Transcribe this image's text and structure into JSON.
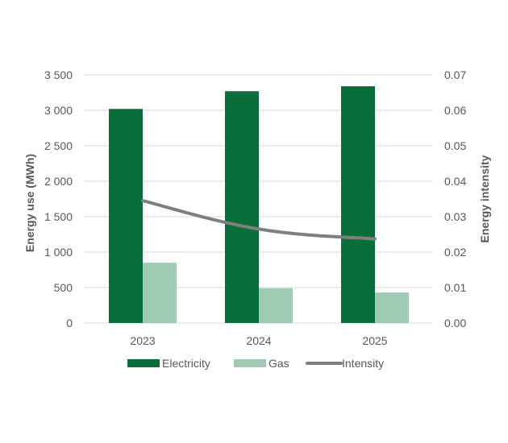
{
  "chart_data": {
    "type": "bar",
    "categories": [
      "2023",
      "2024",
      "2025"
    ],
    "series": [
      {
        "name": "Electricity",
        "kind": "bar",
        "axis": "left",
        "color": "#0a6e3a",
        "values": [
          3020,
          3270,
          3340
        ]
      },
      {
        "name": "Gas",
        "kind": "bar",
        "axis": "left",
        "color": "#9fcab3",
        "values": [
          850,
          490,
          430
        ]
      },
      {
        "name": "Intensity",
        "kind": "line",
        "axis": "right",
        "color": "#7f7f7f",
        "values": [
          0.0345,
          0.0265,
          0.0237
        ]
      }
    ],
    "ylabel": "Energy use (MWh)",
    "y2label": "Energy intensity",
    "ylim": [
      0,
      3500
    ],
    "y2lim": [
      0,
      0.07
    ],
    "yticks": [
      "0",
      "500",
      "1 000",
      "1 500",
      "2 000",
      "2 500",
      "3 000",
      "3 500"
    ],
    "y2ticks": [
      "0.00",
      "0.01",
      "0.02",
      "0.03",
      "0.04",
      "0.05",
      "0.06",
      "0.07"
    ],
    "grid": true,
    "legend": "bottom"
  }
}
